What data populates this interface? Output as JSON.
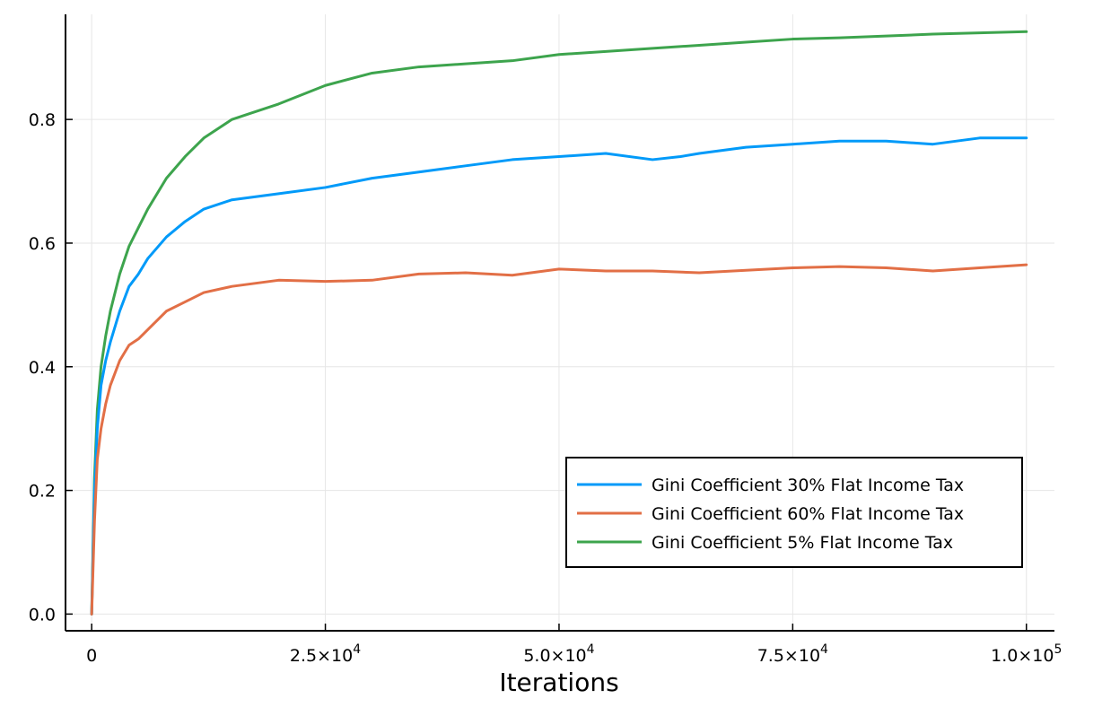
{
  "chart_data": {
    "type": "line",
    "title": "",
    "xlabel": "Iterations",
    "ylabel": "",
    "xlim": [
      -2800,
      103000
    ],
    "ylim": [
      -0.027,
      0.97
    ],
    "grid": true,
    "legend_position": "bottom-right",
    "x_ticks": [
      {
        "value": 0,
        "mantissa": "0",
        "exponent": ""
      },
      {
        "value": 25000,
        "mantissa": "2.5×10",
        "exponent": "4"
      },
      {
        "value": 50000,
        "mantissa": "5.0×10",
        "exponent": "4"
      },
      {
        "value": 75000,
        "mantissa": "7.5×10",
        "exponent": "4"
      },
      {
        "value": 100000,
        "mantissa": "1.0×10",
        "exponent": "5"
      }
    ],
    "y_ticks": [
      {
        "value": 0.0,
        "label": "0.0"
      },
      {
        "value": 0.2,
        "label": "0.2"
      },
      {
        "value": 0.4,
        "label": "0.4"
      },
      {
        "value": 0.6,
        "label": "0.6"
      },
      {
        "value": 0.8,
        "label": "0.8"
      }
    ],
    "series": [
      {
        "name": "Gini Coefficient 30% Flat Income Tax",
        "color": "#009af9",
        "x": [
          0,
          300,
          600,
          1000,
          1500,
          2000,
          3000,
          4000,
          5000,
          6000,
          8000,
          10000,
          12000,
          15000,
          20000,
          25000,
          30000,
          35000,
          40000,
          45000,
          50000,
          55000,
          60000,
          63000,
          65000,
          70000,
          75000,
          80000,
          85000,
          90000,
          95000,
          100000
        ],
        "values": [
          0.0,
          0.2,
          0.3,
          0.37,
          0.41,
          0.44,
          0.49,
          0.53,
          0.55,
          0.575,
          0.61,
          0.635,
          0.655,
          0.67,
          0.68,
          0.69,
          0.705,
          0.715,
          0.725,
          0.735,
          0.74,
          0.745,
          0.735,
          0.74,
          0.745,
          0.755,
          0.76,
          0.765,
          0.765,
          0.76,
          0.77,
          0.77
        ]
      },
      {
        "name": "Gini Coefficient 60% Flat Income Tax",
        "color": "#e26f46",
        "x": [
          0,
          300,
          600,
          1000,
          1500,
          2000,
          3000,
          4000,
          5000,
          6000,
          8000,
          10000,
          12000,
          15000,
          20000,
          25000,
          30000,
          35000,
          40000,
          45000,
          50000,
          55000,
          60000,
          65000,
          70000,
          75000,
          80000,
          85000,
          90000,
          95000,
          100000
        ],
        "values": [
          0.0,
          0.15,
          0.25,
          0.3,
          0.34,
          0.37,
          0.41,
          0.435,
          0.445,
          0.46,
          0.49,
          0.505,
          0.52,
          0.53,
          0.54,
          0.538,
          0.54,
          0.55,
          0.552,
          0.548,
          0.558,
          0.555,
          0.555,
          0.552,
          0.556,
          0.56,
          0.562,
          0.56,
          0.555,
          0.56,
          0.565
        ]
      },
      {
        "name": "Gini Coefficient 5% Flat Income Tax",
        "color": "#3da44d",
        "x": [
          0,
          300,
          600,
          1000,
          1500,
          2000,
          3000,
          4000,
          5000,
          6000,
          8000,
          10000,
          12000,
          15000,
          20000,
          25000,
          30000,
          35000,
          40000,
          45000,
          50000,
          55000,
          60000,
          65000,
          70000,
          75000,
          80000,
          85000,
          90000,
          95000,
          100000
        ],
        "values": [
          0.0,
          0.22,
          0.33,
          0.4,
          0.45,
          0.49,
          0.55,
          0.595,
          0.625,
          0.655,
          0.705,
          0.74,
          0.77,
          0.8,
          0.825,
          0.855,
          0.875,
          0.885,
          0.89,
          0.895,
          0.905,
          0.91,
          0.915,
          0.92,
          0.925,
          0.93,
          0.932,
          0.935,
          0.938,
          0.94,
          0.942
        ]
      }
    ]
  }
}
